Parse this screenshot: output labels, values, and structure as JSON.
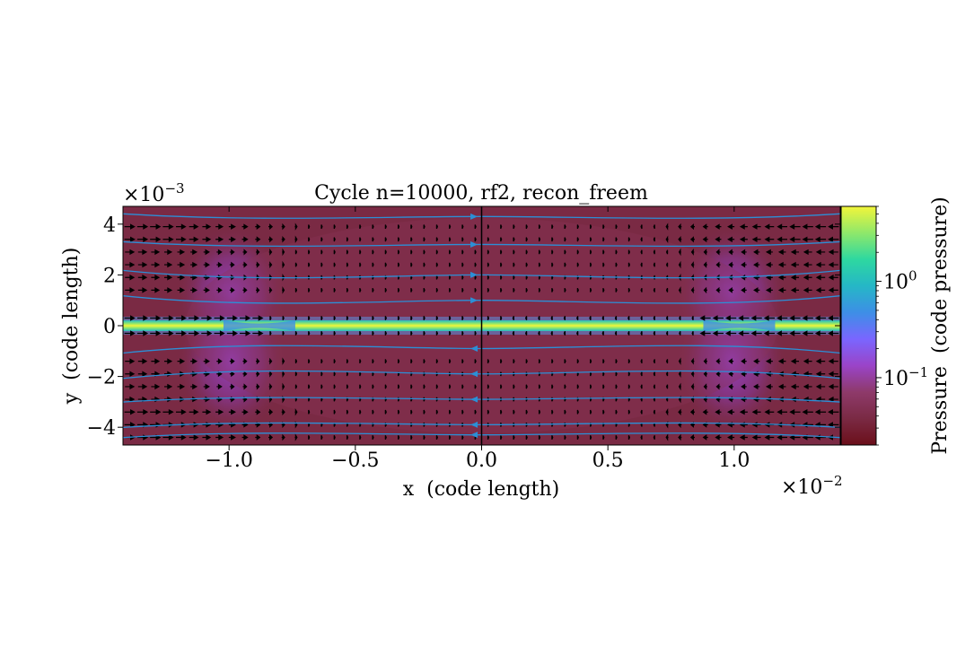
{
  "chart_data": {
    "type": "heatmap",
    "title": "Cycle n=10000, rf2, recon_freem",
    "xlabel": "x  (code length)",
    "ylabel": "y  (code length)",
    "x_multiplier": "×10",
    "x_multiplier_exp": "−2",
    "y_multiplier": "×10",
    "y_multiplier_exp": "−3",
    "xlim": [
      -1.42,
      1.42
    ],
    "ylim": [
      -4.7,
      4.7
    ],
    "x_ticks": [
      {
        "value": -1.0,
        "label": "−1.0"
      },
      {
        "value": -0.5,
        "label": "−0.5"
      },
      {
        "value": 0.0,
        "label": "0.0"
      },
      {
        "value": 0.5,
        "label": "0.5"
      },
      {
        "value": 1.0,
        "label": "1.0"
      }
    ],
    "y_ticks": [
      {
        "value": 4,
        "label": "4"
      },
      {
        "value": 2,
        "label": "2"
      },
      {
        "value": 0,
        "label": "0"
      },
      {
        "value": -2,
        "label": "−2"
      },
      {
        "value": -4,
        "label": "−4"
      }
    ],
    "colorbar": {
      "label": "Pressure  (code pressure)",
      "scale": "log",
      "range": [
        0.02,
        6.0
      ],
      "ticks": [
        {
          "value": 1.0,
          "base": "10",
          "exp": "0"
        },
        {
          "value": 0.1,
          "base": "10",
          "exp": "−1"
        }
      ],
      "colors": [
        "#6b0f1a",
        "#7a2a44",
        "#8e3a6a",
        "#9a44c8",
        "#7a66ff",
        "#3d8fe6",
        "#25b7c6",
        "#2ed8a0",
        "#8fe86a",
        "#f2f53a"
      ]
    },
    "field": {
      "background_pressure": 0.035,
      "current_sheet_pressure": 5.0,
      "x_points_x": [
        -0.88,
        1.02
      ],
      "plasmoid_halo_x": [
        -0.99,
        0.99
      ],
      "halo_pressure": 0.15
    },
    "overlays": {
      "vertical_line_x": 0.0,
      "streamline_y": [
        4.3,
        3.2,
        2.0,
        1.0,
        -0.9,
        -1.9,
        -2.9,
        -3.9,
        -4.3
      ],
      "quiver_rows_y": [
        3.9,
        3.4,
        2.9,
        2.4,
        1.9,
        1.4,
        0.3,
        -0.3,
        -1.4,
        -1.9,
        -2.4,
        -2.9,
        -3.4,
        -3.9,
        -4.4
      ],
      "colors": {
        "streamline": "#2c8fd6",
        "quiver": "#000000",
        "divider": "#000000"
      }
    }
  }
}
